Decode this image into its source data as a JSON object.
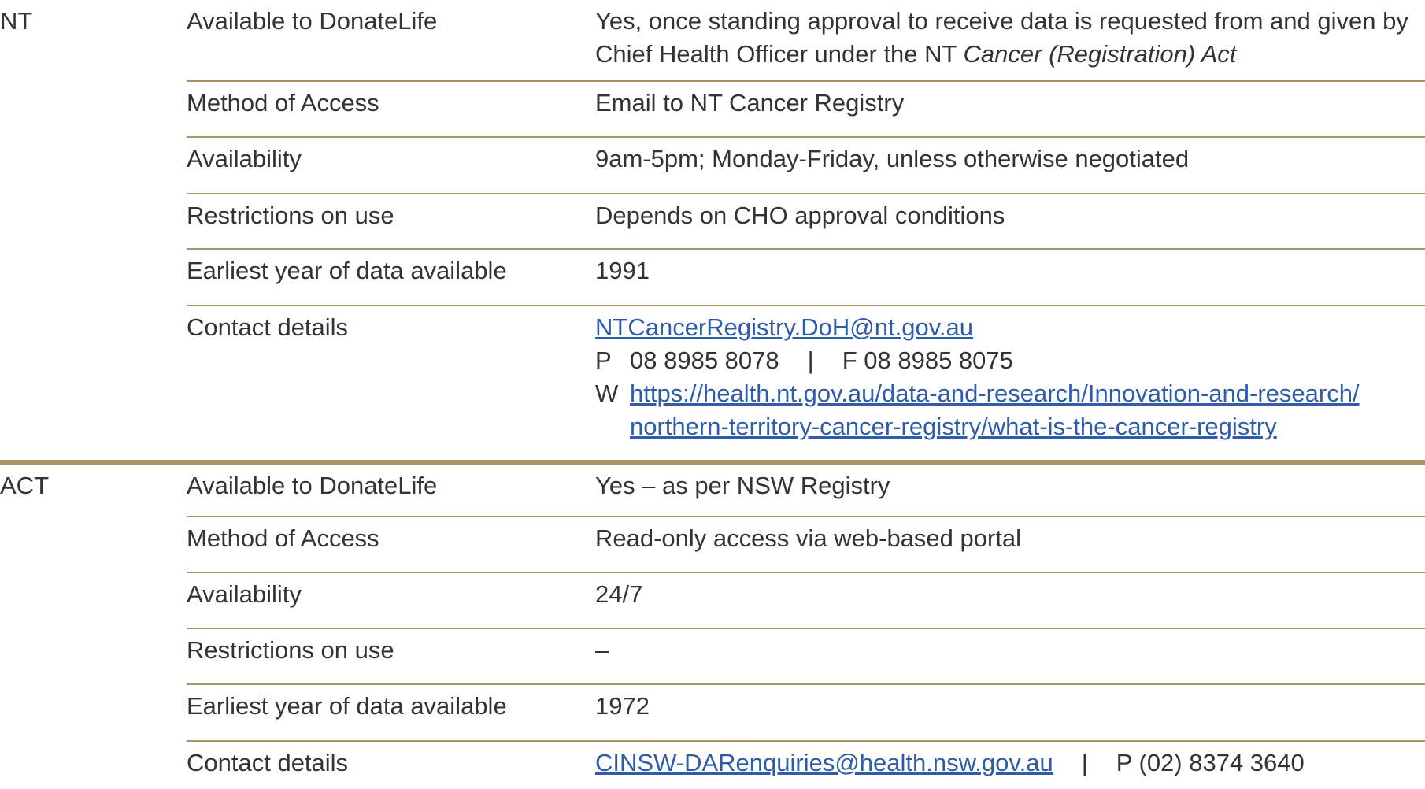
{
  "sections": [
    {
      "state": "NT",
      "rows": [
        {
          "label": "Available to DonateLife",
          "value": "Yes, once standing approval to receive data is requested from and given by Chief Health Officer under the NT ",
          "value_italic": "Cancer (Registration) Act"
        },
        {
          "label": "Method of Access",
          "value": "Email to NT Cancer Registry"
        },
        {
          "label": "Availability",
          "value": "9am-5pm; Monday-Friday, unless otherwise negotiated"
        },
        {
          "label": "Restrictions on use",
          "value": "Depends on CHO approval conditions"
        },
        {
          "label": "Earliest year of data available",
          "value": "1991"
        },
        {
          "label": "Contact details",
          "email": "NTCancerRegistry.DoH@nt.gov.au",
          "phone_prefix": "P",
          "phone": "08 8985 8078",
          "separator": "|",
          "fax": "F 08 8985 8075",
          "web_prefix": "W",
          "web_line1": "https://health.nt.gov.au/data-and-research/Innovation-and-research/",
          "web_line2": "northern-territory-cancer-registry/what-is-the-cancer-registry"
        }
      ]
    },
    {
      "state": "ACT",
      "rows": [
        {
          "label": "Available to DonateLife",
          "value": "Yes – as per NSW Registry"
        },
        {
          "label": "Method of Access",
          "value": "Read-only access via web-based portal"
        },
        {
          "label": "Availability",
          "value": "24/7"
        },
        {
          "label": "Restrictions on use",
          "value": "–"
        },
        {
          "label": "Earliest year of data available",
          "value": "1972"
        },
        {
          "label": "Contact details",
          "email": "CINSW-DARenquiries@health.nsw.gov.au",
          "separator": "|",
          "phone": "P (02) 8374 3640"
        }
      ]
    }
  ],
  "colors": {
    "rule": "#a8956a",
    "link": "#2f5caa",
    "text": "#333333"
  }
}
